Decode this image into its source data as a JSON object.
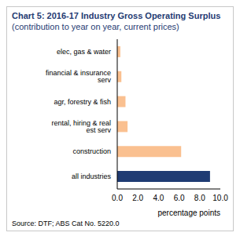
{
  "chart_data": {
    "type": "bar",
    "orientation": "horizontal",
    "title": "Chart 5: 2016-17 Industry Gross Operating Surplus",
    "subtitle": "(contribution to year on year, current prices)",
    "categories": [
      "elec, gas & water",
      "financial & insurance serv",
      "agr, forestry & fish",
      "rental, hiring & real est serv",
      "construction",
      "all industries"
    ],
    "values": [
      0.3,
      0.4,
      0.8,
      1.0,
      6.2,
      9.0
    ],
    "colors": [
      "#fac090",
      "#fac090",
      "#fac090",
      "#fac090",
      "#fac090",
      "#1f3b73"
    ],
    "xlabel": "percentage points",
    "xlim": [
      0,
      10
    ],
    "xticks": [
      {
        "value": 0,
        "label": "0.0"
      },
      {
        "value": 2,
        "label": "2.0"
      },
      {
        "value": 4,
        "label": "4.0"
      },
      {
        "value": 6,
        "label": "6.0"
      },
      {
        "value": 8,
        "label": "8.0"
      },
      {
        "value": 10,
        "label": "10.0"
      }
    ],
    "grid": false,
    "source": "Source: DTF; ABS Cat No. 5220.0"
  }
}
